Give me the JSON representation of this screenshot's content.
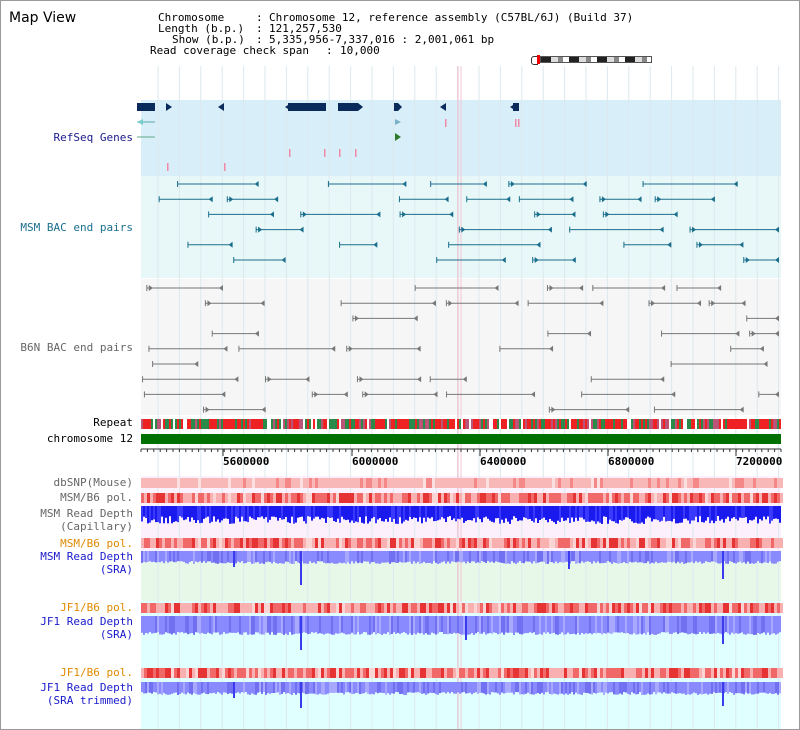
{
  "title": "Map View",
  "info": {
    "chromosome_label": "Chromosome",
    "chromosome_value": "Chromosome 12, reference assembly (C57BL/6J) (Build 37)",
    "length_label": "Length (b.p.)",
    "length_value": "121,257,530",
    "show_label": "Show (b.p.)",
    "show_value": "5,335,956-7,337,016 : 2,001,061 bp",
    "coverage_label": "Read coverage check span",
    "coverage_value": "10,000"
  },
  "tracks": {
    "refseq": "RefSeq Genes",
    "msm_bac": "MSM BAC end pairs",
    "b6n_bac": "B6N BAC end pairs",
    "repeat": "Repeat",
    "chromosome": "chromosome 12",
    "dbsnp": "dbSNP(Mouse)",
    "msm_b6_pol_1": "MSM/B6 pol.",
    "msm_depth_cap_1": "MSM Read Depth",
    "msm_depth_cap_2": "(Capillary)",
    "msm_b6_pol_2": "MSM/B6 pol.",
    "msm_depth_sra_1": "MSM Read Depth",
    "msm_depth_sra_2": "(SRA)",
    "jf1_b6_pol_1": "JF1/B6 pol.",
    "jf1_depth_sra_1": "JF1 Read Depth",
    "jf1_depth_sra_2": "(SRA)",
    "jf1_b6_pol_2": "JF1/B6 pol.",
    "jf1_depth_trim_1": "JF1 Read Depth",
    "jf1_depth_trim_2": "(SRA trimmed)"
  },
  "axis_ticks": [
    "5600000",
    "6000000",
    "6400000",
    "6800000",
    "7200000"
  ],
  "colors": {
    "refseq_bg": "#d8eef8",
    "msm_bac_bg": "#e8f8f8",
    "b6n_bac_bg": "#f6f6f6",
    "chromosome_bar": "#007000",
    "sra_bg": "#e8f8e8",
    "jf1_bg": "#e0ffff",
    "depth_blue": "#1a1aee",
    "depth_light": "#8a8aff"
  }
}
